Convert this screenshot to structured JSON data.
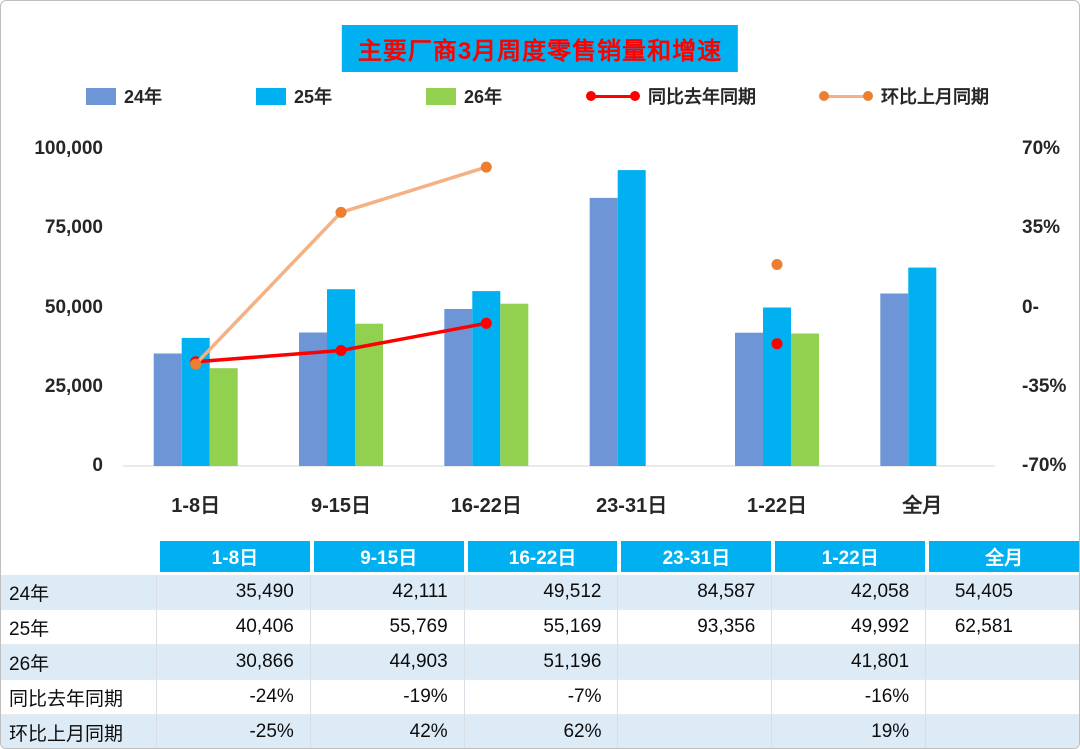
{
  "title": "主要厂商3月周度零售销量和增速",
  "colors": {
    "title_bg": "#00B0F0",
    "title_text": "#FF0000",
    "bar_24": "#6E96D6",
    "bar_25": "#00B0F0",
    "bar_26": "#92D050",
    "line_yoy": "#FF0000",
    "line_mom": "#F4B183",
    "line_mom_marker": "#ED7D31",
    "table_header_bg": "#00B0F0",
    "table_alt_row_bg": "#DDEBF7"
  },
  "legend": {
    "items": [
      {
        "label": "24年",
        "type": "square",
        "color": "#6E96D6"
      },
      {
        "label": "25年",
        "type": "square",
        "color": "#00B0F0"
      },
      {
        "label": "26年",
        "type": "square",
        "color": "#92D050"
      },
      {
        "label": "同比去年同期",
        "type": "line",
        "color": "#FF0000",
        "marker_color": "#FF0000"
      },
      {
        "label": "环比上月同期",
        "type": "line",
        "color": "#F4B183",
        "marker_color": "#ED7D31"
      }
    ]
  },
  "chart_data": {
    "type": "bar",
    "title": "主要厂商3月周度零售销量和增速",
    "categories": [
      "1-8日",
      "9-15日",
      "16-22日",
      "23-31日",
      "1-22日",
      "全月"
    ],
    "bar_series": [
      {
        "name": "24年",
        "color": "#6E96D6",
        "values": [
          35490,
          42111,
          49512,
          84587,
          42058,
          54405
        ]
      },
      {
        "name": "25年",
        "color": "#00B0F0",
        "values": [
          40406,
          55769,
          55169,
          93356,
          49992,
          62581
        ]
      },
      {
        "name": "26年",
        "color": "#92D050",
        "values": [
          30866,
          44903,
          51196,
          null,
          41801,
          null
        ]
      }
    ],
    "line_series": [
      {
        "name": "同比去年同期",
        "color": "#FF0000",
        "marker_color": "#FF0000",
        "values_pct": [
          -24,
          -19,
          -7,
          null,
          -16,
          null
        ]
      },
      {
        "name": "环比上月同期",
        "color": "#F4B183",
        "marker_color": "#ED7D31",
        "values_pct": [
          -25,
          42,
          62,
          null,
          19,
          null
        ]
      }
    ],
    "left_axis": {
      "ticks": [
        "100,000",
        "75,000",
        "50,000",
        "25,000",
        "0"
      ],
      "min": 0,
      "max": 100000
    },
    "right_axis": {
      "ticks": [
        "70%",
        "35%",
        "0-",
        "-35%",
        "-70%"
      ],
      "min": -70,
      "max": 70
    },
    "grid": "off",
    "legend_position": "top"
  },
  "table": {
    "headers": [
      "",
      "1-8日",
      "9-15日",
      "16-22日",
      "23-31日",
      "1-22日",
      "全月"
    ],
    "rows": [
      {
        "label": "24年",
        "cells": [
          "35,490",
          "42,111",
          "49,512",
          "84,587",
          "42,058",
          "54,405"
        ]
      },
      {
        "label": "25年",
        "cells": [
          "40,406",
          "55,769",
          "55,169",
          "93,356",
          "49,992",
          "62,581"
        ]
      },
      {
        "label": "26年",
        "cells": [
          "30,866",
          "44,903",
          "51,196",
          "",
          "41,801",
          ""
        ]
      },
      {
        "label": "同比去年同期",
        "cells": [
          "-24%",
          "-19%",
          "-7%",
          "",
          "-16%",
          ""
        ]
      },
      {
        "label": "环比上月同期",
        "cells": [
          "-25%",
          "42%",
          "62%",
          "",
          "19%",
          ""
        ]
      }
    ]
  }
}
